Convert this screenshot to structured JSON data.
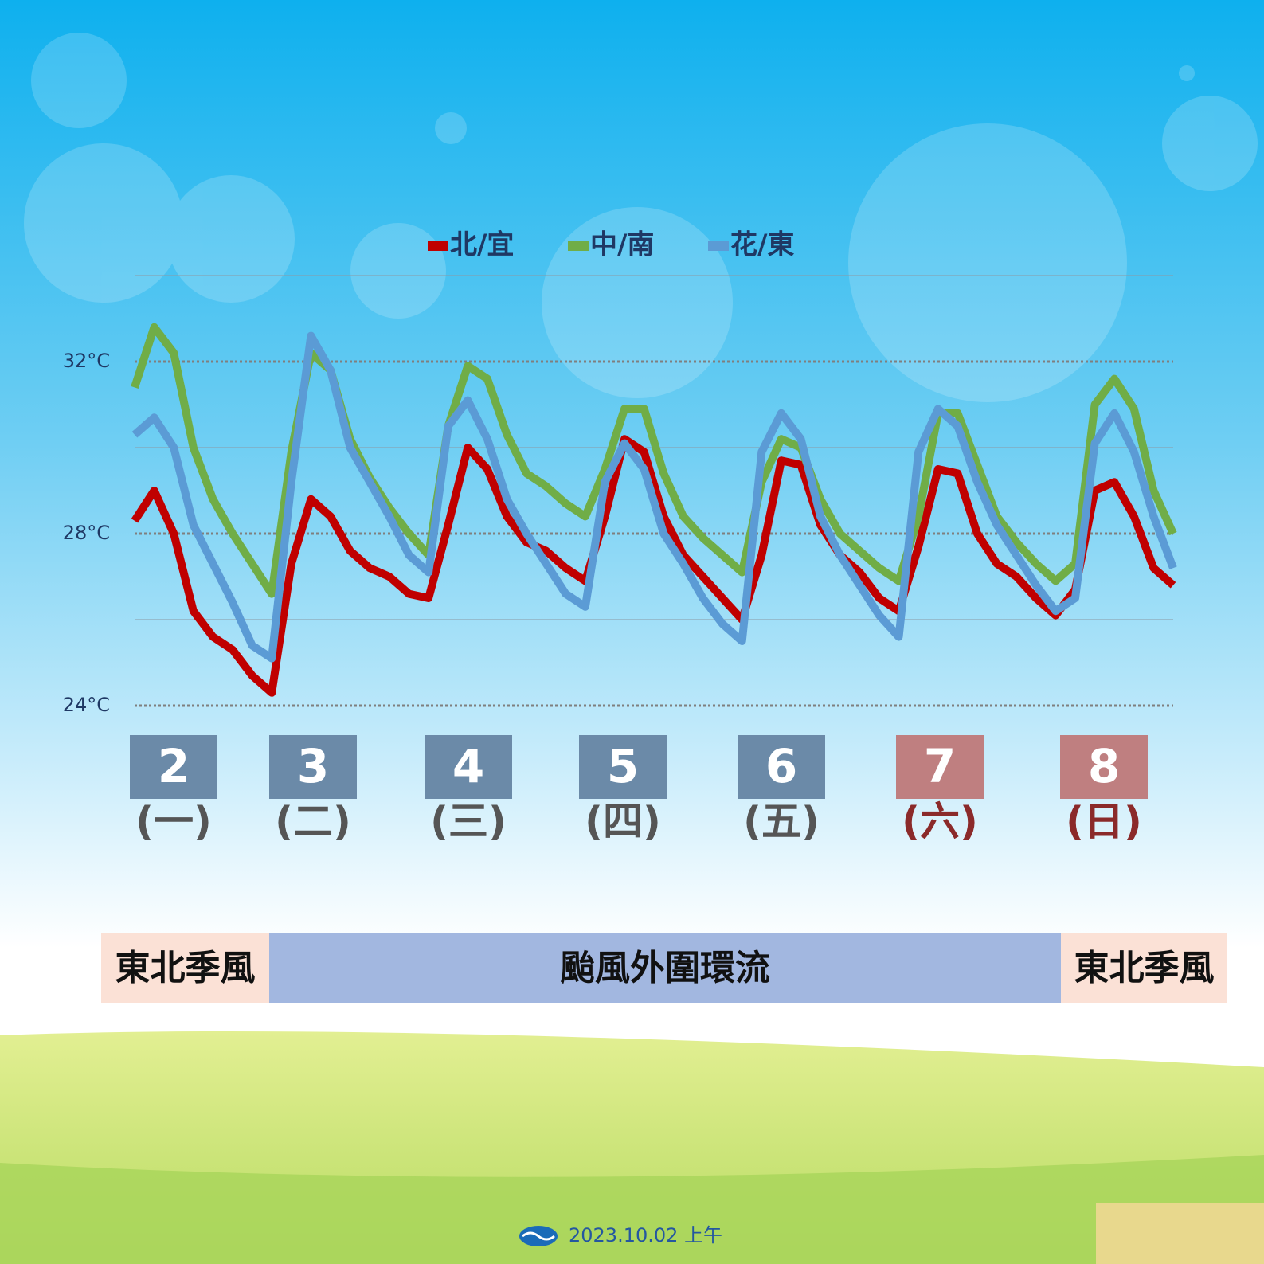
{
  "chart_data": {
    "type": "line",
    "ylim": [
      24,
      34
    ],
    "yticks": [
      {
        "value": 24,
        "label": "24°C"
      },
      {
        "value": 28,
        "label": "28°C"
      },
      {
        "value": 32,
        "label": "32°C"
      }
    ],
    "minor_gridlines": [
      26,
      30,
      34
    ],
    "grid": true,
    "legend": "top",
    "series": [
      {
        "name": "北/宜",
        "color": "#c00000",
        "values": [
          28.3,
          29.0,
          28.0,
          26.2,
          25.6,
          25.3,
          24.7,
          24.3,
          27.3,
          28.8,
          28.4,
          27.6,
          27.2,
          27.0,
          26.6,
          26.5,
          28.2,
          30.0,
          29.5,
          28.4,
          27.8,
          27.6,
          27.2,
          26.9,
          28.4,
          30.2,
          29.9,
          28.4,
          27.5,
          27.0,
          26.5,
          26.0,
          27.5,
          29.7,
          29.6,
          28.2,
          27.5,
          27.1,
          26.5,
          26.2,
          27.7,
          29.5,
          29.4,
          28.0,
          27.3,
          27.0,
          26.5,
          26.1,
          26.7,
          29.0,
          29.2,
          28.4,
          27.2,
          26.8
        ]
      },
      {
        "name": "中/南",
        "color": "#70ad47",
        "values": [
          31.4,
          32.8,
          32.2,
          30.0,
          28.8,
          28.0,
          27.3,
          26.6,
          29.9,
          32.2,
          31.8,
          30.2,
          29.3,
          28.6,
          28.0,
          27.5,
          30.5,
          31.9,
          31.6,
          30.3,
          29.4,
          29.1,
          28.7,
          28.4,
          29.5,
          30.9,
          30.9,
          29.4,
          28.4,
          27.9,
          27.5,
          27.1,
          29.2,
          30.2,
          30.0,
          28.8,
          28.0,
          27.6,
          27.2,
          26.9,
          28.4,
          30.8,
          30.8,
          29.6,
          28.4,
          27.8,
          27.3,
          26.9,
          27.3,
          31.0,
          31.6,
          30.9,
          29.0,
          28.0
        ]
      },
      {
        "name": "花/東",
        "color": "#5b9bd5",
        "values": [
          30.3,
          30.7,
          30.0,
          28.2,
          27.3,
          26.4,
          25.4,
          25.1,
          29.2,
          32.6,
          31.8,
          30.0,
          29.2,
          28.4,
          27.5,
          27.1,
          30.5,
          31.1,
          30.2,
          28.8,
          28.0,
          27.3,
          26.6,
          26.3,
          29.2,
          30.1,
          29.5,
          28.0,
          27.3,
          26.5,
          25.9,
          25.5,
          29.9,
          30.8,
          30.2,
          28.4,
          27.5,
          26.8,
          26.1,
          25.6,
          29.9,
          30.9,
          30.5,
          29.2,
          28.2,
          27.5,
          26.8,
          26.2,
          26.5,
          30.1,
          30.8,
          29.9,
          28.4,
          27.2
        ]
      }
    ],
    "days": [
      {
        "date": "2",
        "weekday": "(一)",
        "color": "#6b8aa8",
        "text_color": "#555555"
      },
      {
        "date": "3",
        "weekday": "(二)",
        "color": "#6b8aa8",
        "text_color": "#555555"
      },
      {
        "date": "4",
        "weekday": "(三)",
        "color": "#6b8aa8",
        "text_color": "#555555"
      },
      {
        "date": "5",
        "weekday": "(四)",
        "color": "#6b8aa8",
        "text_color": "#555555"
      },
      {
        "date": "6",
        "weekday": "(五)",
        "color": "#6b8aa8",
        "text_color": "#555555"
      },
      {
        "date": "7",
        "weekday": "(六)",
        "color": "#bf7f80",
        "text_color": "#8b2a2a"
      },
      {
        "date": "8",
        "weekday": "(日)",
        "color": "#bf7f80",
        "text_color": "#8b2a2a"
      }
    ],
    "periods": [
      {
        "label": "東北季風",
        "color": "#fbe1d6"
      },
      {
        "label": "颱風外圍環流",
        "color": "#a2b7e0"
      },
      {
        "label": "東北季風",
        "color": "#fbe1d6"
      }
    ]
  },
  "footer": {
    "date": "2023.10.02 上午"
  }
}
